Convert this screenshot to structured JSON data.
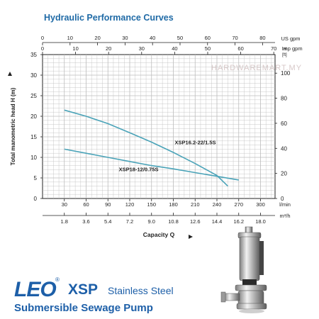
{
  "title": "Hydraulic Performance Curves",
  "watermark": "HARDWAREMART.MY",
  "brand": {
    "logo": "LEO",
    "reg": "®",
    "model": "XSP",
    "material": "Stainless Steel",
    "subtitle": "Submersible Sewage Pump"
  },
  "colors": {
    "curve": "#4aa3b8",
    "grid": "#bcbcbc",
    "axis": "#222222",
    "brand": "#1d5fa8"
  },
  "chart_data": {
    "type": "line",
    "x_unit": "l/min",
    "xlim": [
      0,
      320
    ],
    "ylim": [
      0,
      35
    ],
    "x_ticks_lmin": [
      "30",
      "60",
      "90",
      "120",
      "150",
      "180",
      "210",
      "240",
      "270",
      "300"
    ],
    "x_ticks_m3h": [
      "1.8",
      "3.6",
      "5.4",
      "7.2",
      "9.0",
      "10.8",
      "12.6",
      "14.4",
      "16.2",
      "18.0"
    ],
    "x_ticks_usgpm": [
      "0",
      "10",
      "20",
      "30",
      "40",
      "50",
      "60",
      "70",
      "80"
    ],
    "x_ticks_impgpm": [
      "0",
      "10",
      "20",
      "30",
      "40",
      "50",
      "60",
      "70"
    ],
    "y_ticks_m": [
      "0",
      "5",
      "10",
      "15",
      "20",
      "25",
      "30",
      "35"
    ],
    "y_ticks_ft": [
      "0",
      "20",
      "40",
      "60",
      "80",
      "100"
    ],
    "unit_labels": {
      "usgpm": "US gpm",
      "impgpm": "Imp gpm",
      "lmin": "l/min",
      "m3h": "m³/h",
      "h_top": "H",
      "ft": "[ft]"
    },
    "ylabel": "Total manometric head H (m)",
    "xlabel": "Capacity Q",
    "series": [
      {
        "name": "XSP16.2-22/1.5S",
        "points": [
          [
            30,
            21.5
          ],
          [
            60,
            20
          ],
          [
            90,
            18.2
          ],
          [
            120,
            16
          ],
          [
            150,
            13.7
          ],
          [
            180,
            11.2
          ],
          [
            210,
            8.5
          ],
          [
            240,
            5.6
          ],
          [
            255,
            3.0
          ]
        ]
      },
      {
        "name": "XSP18-12/0.75S",
        "points": [
          [
            30,
            12
          ],
          [
            60,
            11
          ],
          [
            90,
            10
          ],
          [
            120,
            9
          ],
          [
            150,
            8
          ],
          [
            180,
            7.2
          ],
          [
            210,
            6.3
          ],
          [
            240,
            5.4
          ],
          [
            270,
            4.5
          ]
        ]
      }
    ]
  }
}
